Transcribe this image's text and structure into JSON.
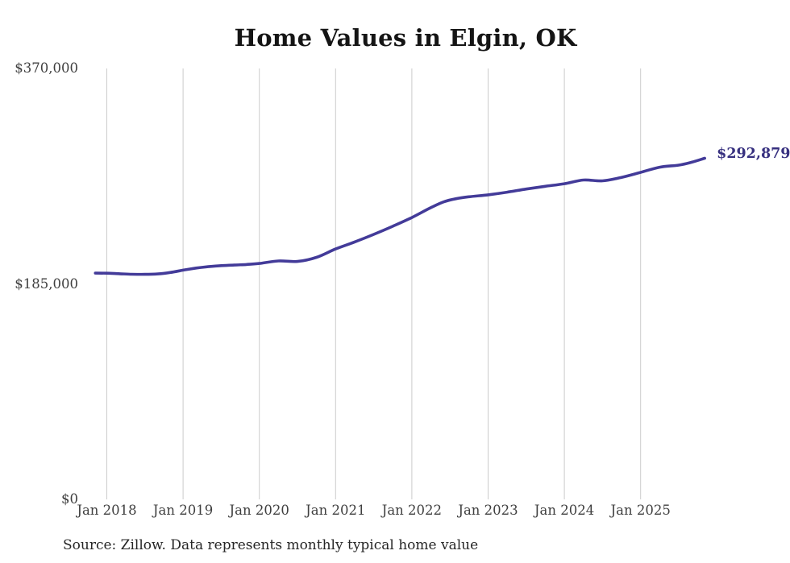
{
  "page": {
    "background": "#ffffff"
  },
  "chart_data": {
    "type": "line",
    "title": "Home Values in Elgin, OK",
    "xlabel": "",
    "ylabel": "",
    "unit": "USD",
    "ylim": [
      0,
      370000
    ],
    "xlim": [
      2017.85,
      2026.0
    ],
    "grid": "vertical-only",
    "grid_color": "#cccccc",
    "legend_position": "none",
    "y_ticks": [
      {
        "label": "$370,000",
        "value": 370000
      },
      {
        "label": "$185,000",
        "value": 185000
      },
      {
        "label": "$0",
        "value": 0
      }
    ],
    "x_ticks": [
      {
        "label": "Jan 2018",
        "year": 2018
      },
      {
        "label": "Jan 2019",
        "year": 2019
      },
      {
        "label": "Jan 2020",
        "year": 2020
      },
      {
        "label": "Jan 2021",
        "year": 2021
      },
      {
        "label": "Jan 2022",
        "year": 2022
      },
      {
        "label": "Jan 2023",
        "year": 2023
      },
      {
        "label": "Jan 2024",
        "year": 2024
      },
      {
        "label": "Jan 2025",
        "year": 2025
      }
    ],
    "series": [
      {
        "name": "Monthly typical home value",
        "color": "#433b99",
        "points": [
          [
            2017.85,
            194300
          ],
          [
            2018.0,
            194200
          ],
          [
            2018.17,
            193700
          ],
          [
            2018.33,
            193300
          ],
          [
            2018.5,
            193200
          ],
          [
            2018.67,
            193600
          ],
          [
            2018.83,
            194800
          ],
          [
            2019.0,
            196800
          ],
          [
            2019.17,
            198600
          ],
          [
            2019.33,
            199800
          ],
          [
            2019.5,
            200700
          ],
          [
            2019.67,
            201200
          ],
          [
            2019.83,
            201700
          ],
          [
            2020.0,
            202600
          ],
          [
            2020.25,
            204700
          ],
          [
            2020.5,
            204300
          ],
          [
            2020.75,
            207800
          ],
          [
            2021.0,
            215000
          ],
          [
            2021.25,
            221000
          ],
          [
            2021.5,
            227500
          ],
          [
            2021.75,
            234500
          ],
          [
            2022.0,
            242000
          ],
          [
            2022.25,
            250500
          ],
          [
            2022.42,
            255500
          ],
          [
            2022.58,
            258200
          ],
          [
            2022.75,
            259800
          ],
          [
            2023.0,
            261500
          ],
          [
            2023.25,
            263800
          ],
          [
            2023.5,
            266500
          ],
          [
            2023.75,
            268800
          ],
          [
            2024.0,
            271000
          ],
          [
            2024.25,
            274200
          ],
          [
            2024.5,
            273500
          ],
          [
            2024.75,
            276500
          ],
          [
            2025.0,
            280800
          ],
          [
            2025.25,
            285200
          ],
          [
            2025.5,
            287000
          ],
          [
            2025.67,
            289500
          ],
          [
            2025.84,
            292879
          ]
        ]
      }
    ],
    "end_label": {
      "text": "$292,879",
      "value": 292879,
      "color": "#37307f"
    },
    "source_note": "Source: Zillow. Data represents monthly typical home value"
  }
}
